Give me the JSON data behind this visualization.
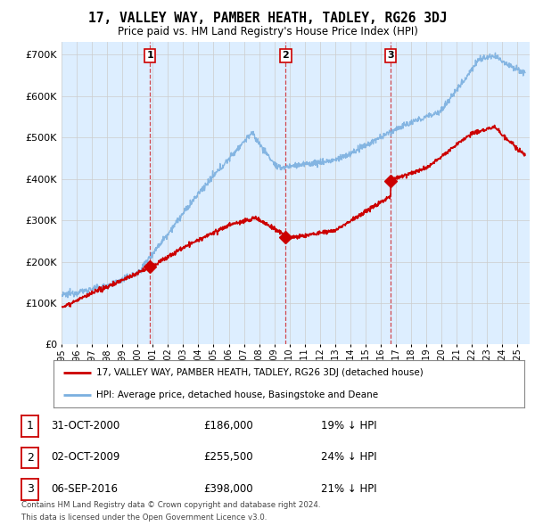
{
  "title": "17, VALLEY WAY, PAMBER HEATH, TADLEY, RG26 3DJ",
  "subtitle": "Price paid vs. HM Land Registry's House Price Index (HPI)",
  "ylabel_ticks": [
    "£0",
    "£100K",
    "£200K",
    "£300K",
    "£400K",
    "£500K",
    "£600K",
    "£700K"
  ],
  "ytick_values": [
    0,
    100000,
    200000,
    300000,
    400000,
    500000,
    600000,
    700000
  ],
  "ylim": [
    0,
    730000
  ],
  "xlim_start": 1995.0,
  "xlim_end": 2025.8,
  "red_line_color": "#cc0000",
  "blue_line_color": "#7aafdf",
  "bg_fill_color": "#ddeeff",
  "vline_color": "#cc0000",
  "grid_color": "#cccccc",
  "bg_color": "#ffffff",
  "legend_label_red": "17, VALLEY WAY, PAMBER HEATH, TADLEY, RG26 3DJ (detached house)",
  "legend_label_blue": "HPI: Average price, detached house, Basingstoke and Deane",
  "transactions": [
    {
      "num": 1,
      "date": "31-OCT-2000",
      "price": "£186,000",
      "pct": "19% ↓ HPI",
      "year": 2000.83,
      "prop_price": 186000
    },
    {
      "num": 2,
      "date": "02-OCT-2009",
      "price": "£255,500",
      "pct": "24% ↓ HPI",
      "year": 2009.75,
      "prop_price": 255500
    },
    {
      "num": 3,
      "date": "06-SEP-2016",
      "price": "£398,000",
      "pct": "21% ↓ HPI",
      "year": 2016.67,
      "prop_price": 398000
    }
  ],
  "footnote1": "Contains HM Land Registry data © Crown copyright and database right 2024.",
  "footnote2": "This data is licensed under the Open Government Licence v3.0."
}
